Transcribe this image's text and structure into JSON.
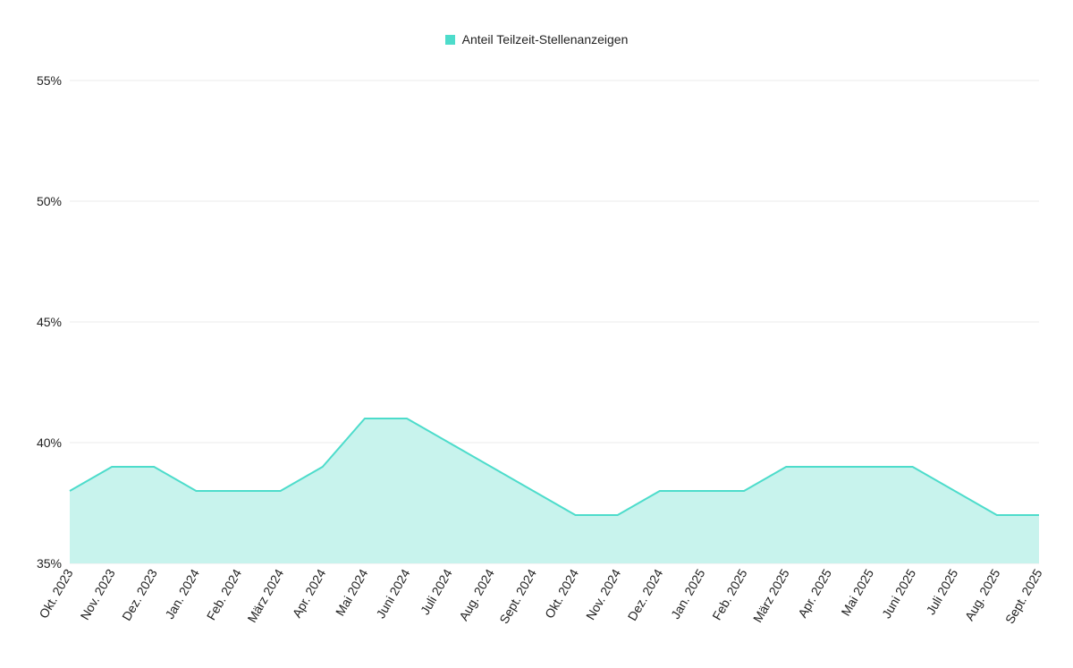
{
  "colors": {
    "line": "#4ddccb",
    "fill": "#c8f3ed",
    "grid": "#ebebeb",
    "text": "#222222"
  },
  "chart_data": {
    "type": "area",
    "legend_position": "top-center",
    "grid": true,
    "series": [
      {
        "name": "Anteil Teilzeit-Stellenanzeigen",
        "values": [
          38,
          39,
          39,
          38,
          38,
          38,
          39,
          41,
          41,
          40,
          39,
          38,
          37,
          37,
          38,
          38,
          38,
          39,
          39,
          39,
          39,
          38,
          37,
          37
        ]
      }
    ],
    "categories": [
      "Okt. 2023",
      "Nov. 2023",
      "Dez. 2023",
      "Jan. 2024",
      "Feb. 2024",
      "März 2024",
      "Apr. 2024",
      "Mai 2024",
      "Juni 2024",
      "Juli 2024",
      "Aug. 2024",
      "Sept. 2024",
      "Okt. 2024",
      "Nov. 2024",
      "Dez. 2024",
      "Jan. 2025",
      "Feb. 2025",
      "März 2025",
      "Apr. 2025",
      "Mai 2025",
      "Juni 2025",
      "Juli 2025",
      "Aug. 2025",
      "Sept. 2025"
    ],
    "ylim": [
      35,
      55
    ],
    "yticks": [
      35,
      40,
      45,
      50,
      55
    ],
    "ytick_labels": [
      "35%",
      "40%",
      "45%",
      "50%",
      "55%"
    ]
  }
}
